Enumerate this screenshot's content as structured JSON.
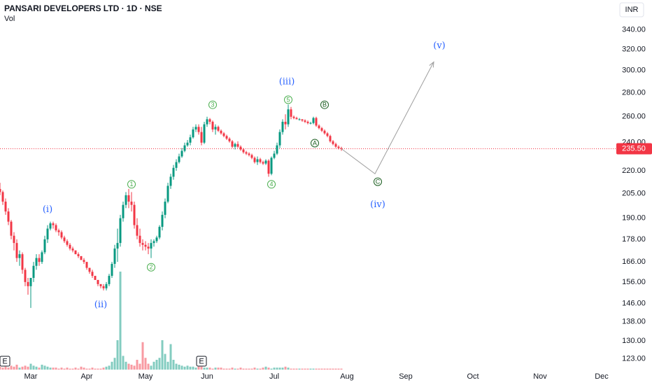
{
  "chart_data": {
    "type": "candlestick",
    "title": "PANSARI DEVELOPERS LTD · 1D · NSE",
    "volume_label": "Vol",
    "currency": "INR",
    "log_scale": true,
    "grid": false,
    "up_color": "#089981",
    "down_color": "#f23645",
    "xlim": [
      0,
      220
    ],
    "xticks": [
      {
        "value": 11,
        "label": "Mar"
      },
      {
        "value": 31,
        "label": "Apr"
      },
      {
        "value": 52,
        "label": "May"
      },
      {
        "value": 74,
        "label": "Jun"
      },
      {
        "value": 98,
        "label": "Jul"
      },
      {
        "value": 124,
        "label": "Aug"
      },
      {
        "value": 145,
        "label": "Sep"
      },
      {
        "value": 169,
        "label": "Oct"
      },
      {
        "value": 193,
        "label": "Nov"
      },
      {
        "value": 215,
        "label": "Dec"
      }
    ],
    "ylim": [
      119,
      373
    ],
    "yticks": [
      {
        "value": 340,
        "label": "340.00"
      },
      {
        "value": 320,
        "label": "320.00"
      },
      {
        "value": 300,
        "label": "300.00"
      },
      {
        "value": 280,
        "label": "280.00"
      },
      {
        "value": 260,
        "label": "260.00"
      },
      {
        "value": 240,
        "label": "240.00"
      },
      {
        "value": 220,
        "label": "220.00"
      },
      {
        "value": 205,
        "label": "205.00"
      },
      {
        "value": 190,
        "label": "190.00"
      },
      {
        "value": 178,
        "label": "178.00"
      },
      {
        "value": 166,
        "label": "166.00"
      },
      {
        "value": 156,
        "label": "156.00"
      },
      {
        "value": 146,
        "label": "146.00"
      },
      {
        "value": 138,
        "label": "138.00"
      },
      {
        "value": 130,
        "label": "130.00"
      },
      {
        "value": 123,
        "label": "123.00"
      }
    ],
    "last_price": {
      "value": 235.5,
      "label": "235.50"
    },
    "ohlc": [
      [
        208,
        212,
        204,
        206
      ],
      [
        206,
        207,
        198,
        200
      ],
      [
        200,
        202,
        192,
        194
      ],
      [
        194,
        196,
        186,
        188
      ],
      [
        188,
        189,
        178,
        180
      ],
      [
        180,
        182,
        172,
        176
      ],
      [
        176,
        178,
        166,
        168
      ],
      [
        168,
        172,
        164,
        170
      ],
      [
        170,
        171,
        160,
        162
      ],
      [
        162,
        163,
        154,
        156
      ],
      [
        156,
        158,
        150,
        154
      ],
      [
        154,
        156,
        144,
        158
      ],
      [
        158,
        166,
        156,
        164
      ],
      [
        164,
        170,
        162,
        168
      ],
      [
        168,
        170,
        164,
        166
      ],
      [
        166,
        172,
        165,
        171
      ],
      [
        171,
        180,
        170,
        178
      ],
      [
        178,
        186,
        176,
        184
      ],
      [
        184,
        188,
        183,
        187
      ],
      [
        187,
        188,
        184,
        186
      ],
      [
        186,
        187,
        182,
        183
      ],
      [
        183,
        184,
        180,
        182
      ],
      [
        182,
        183,
        178,
        179
      ],
      [
        179,
        180,
        176,
        177
      ],
      [
        177,
        178,
        174,
        175
      ],
      [
        175,
        176,
        172,
        173
      ],
      [
        173,
        174,
        171,
        172
      ],
      [
        172,
        172,
        170,
        170
      ],
      [
        170,
        171,
        168,
        169
      ],
      [
        169,
        169,
        167,
        167
      ],
      [
        167,
        168,
        165,
        166
      ],
      [
        166,
        166,
        162,
        163
      ],
      [
        163,
        163,
        160,
        161
      ],
      [
        161,
        162,
        158,
        159
      ],
      [
        159,
        159,
        157,
        157
      ],
      [
        157,
        157,
        154,
        155
      ],
      [
        155,
        155,
        153,
        154
      ],
      [
        154,
        155,
        152,
        153
      ],
      [
        153,
        156,
        152,
        155
      ],
      [
        155,
        160,
        154,
        159
      ],
      [
        159,
        166,
        158,
        165
      ],
      [
        165,
        175,
        163,
        173
      ],
      [
        173,
        184,
        166,
        176
      ],
      [
        176,
        192,
        174,
        190
      ],
      [
        190,
        200,
        188,
        198
      ],
      [
        198,
        206,
        196,
        204
      ],
      [
        204,
        208,
        196,
        200
      ],
      [
        200,
        206,
        194,
        198
      ],
      [
        198,
        200,
        184,
        186
      ],
      [
        186,
        190,
        178,
        180
      ],
      [
        180,
        184,
        174,
        176
      ],
      [
        176,
        178,
        172,
        175
      ],
      [
        175,
        177,
        172,
        174
      ],
      [
        174,
        176,
        170,
        173
      ],
      [
        173,
        178,
        168,
        176
      ],
      [
        176,
        178,
        174,
        177
      ],
      [
        177,
        180,
        176,
        179
      ],
      [
        179,
        186,
        178,
        185
      ],
      [
        185,
        194,
        183,
        192
      ],
      [
        192,
        202,
        190,
        200
      ],
      [
        200,
        212,
        199,
        210
      ],
      [
        210,
        218,
        208,
        216
      ],
      [
        216,
        224,
        214,
        222
      ],
      [
        222,
        228,
        220,
        226
      ],
      [
        226,
        232,
        225,
        230
      ],
      [
        230,
        236,
        229,
        234
      ],
      [
        234,
        240,
        233,
        238
      ],
      [
        238,
        242,
        237,
        240
      ],
      [
        240,
        246,
        238,
        244
      ],
      [
        244,
        252,
        243,
        250
      ],
      [
        250,
        254,
        248,
        252
      ],
      [
        252,
        254,
        246,
        248
      ],
      [
        248,
        252,
        238,
        240
      ],
      [
        240,
        256,
        239,
        254
      ],
      [
        254,
        260,
        252,
        258
      ],
      [
        258,
        259,
        254,
        256
      ],
      [
        256,
        257,
        248,
        250
      ],
      [
        250,
        254,
        246,
        252
      ],
      [
        252,
        253,
        248,
        249
      ],
      [
        249,
        250,
        246,
        247
      ],
      [
        247,
        248,
        244,
        245
      ],
      [
        245,
        246,
        242,
        243
      ],
      [
        243,
        244,
        240,
        241
      ],
      [
        241,
        242,
        236,
        237
      ],
      [
        237,
        240,
        235,
        239
      ],
      [
        239,
        241,
        236,
        237
      ],
      [
        237,
        238,
        234,
        235
      ],
      [
        235,
        236,
        232,
        233
      ],
      [
        233,
        234,
        231,
        232
      ],
      [
        232,
        233,
        230,
        231
      ],
      [
        231,
        232,
        228,
        229
      ],
      [
        229,
        230,
        225,
        226
      ],
      [
        226,
        230,
        224,
        228
      ],
      [
        228,
        229,
        225,
        226
      ],
      [
        226,
        227,
        224,
        225
      ],
      [
        225,
        228,
        224,
        227
      ],
      [
        227,
        228,
        216,
        218
      ],
      [
        218,
        230,
        217,
        229
      ],
      [
        229,
        234,
        228,
        232
      ],
      [
        232,
        240,
        231,
        238
      ],
      [
        238,
        250,
        236,
        248
      ],
      [
        248,
        258,
        246,
        256
      ],
      [
        256,
        262,
        250,
        254
      ],
      [
        254,
        270,
        252,
        266
      ],
      [
        266,
        268,
        258,
        260
      ],
      [
        260,
        261,
        258,
        259
      ],
      [
        259,
        260,
        258,
        258
      ],
      [
        258,
        259,
        257,
        258
      ],
      [
        258,
        258,
        256,
        257
      ],
      [
        257,
        258,
        255,
        256
      ],
      [
        256,
        257,
        254,
        255
      ],
      [
        255,
        256,
        254,
        255
      ],
      [
        255,
        260,
        254,
        259
      ],
      [
        259,
        260,
        252,
        253
      ],
      [
        253,
        254,
        250,
        251
      ],
      [
        251,
        252,
        248,
        249
      ],
      [
        249,
        250,
        246,
        247
      ],
      [
        247,
        248,
        244,
        245
      ],
      [
        245,
        246,
        240,
        241
      ],
      [
        241,
        242,
        238,
        239
      ],
      [
        239,
        240,
        236,
        237
      ],
      [
        237,
        238,
        235,
        236
      ],
      [
        236,
        237,
        234,
        235.5
      ]
    ],
    "volume_lim": [
      0,
      100
    ],
    "volume": [
      3,
      2,
      3,
      2,
      4,
      3,
      5,
      2,
      3,
      4,
      3,
      6,
      4,
      3,
      2,
      5,
      4,
      3,
      2,
      2,
      2,
      1,
      2,
      1,
      2,
      1,
      1,
      2,
      1,
      3,
      2,
      1,
      1,
      2,
      1,
      1,
      1,
      2,
      3,
      4,
      8,
      12,
      30,
      100,
      14,
      8,
      6,
      5,
      4,
      10,
      6,
      28,
      12,
      6,
      4,
      8,
      10,
      12,
      30,
      16,
      8,
      26,
      10,
      6,
      5,
      4,
      3,
      4,
      3,
      3,
      2,
      3,
      3,
      2,
      2,
      2,
      1,
      2,
      2,
      2,
      1,
      1,
      1,
      2,
      1,
      1,
      2,
      1,
      1,
      1,
      1,
      2,
      1,
      1,
      2,
      3,
      2,
      1,
      2,
      2,
      2,
      2,
      3,
      2,
      1,
      1,
      1,
      1,
      1,
      1,
      1,
      1,
      1,
      1,
      1,
      1,
      1,
      1,
      1,
      1,
      1,
      1,
      1
    ],
    "events": [
      {
        "x": 0,
        "label": "E"
      },
      {
        "x": 72,
        "label": "E"
      }
    ],
    "projection": {
      "color": "#9e9e9e",
      "x": [
        122,
        134,
        155
      ],
      "y": [
        235.5,
        218,
        308
      ]
    },
    "annotations": [
      {
        "text": "(i)",
        "x": 17,
        "y": 195,
        "color": "#2962ff",
        "circled": false
      },
      {
        "text": "(ii)",
        "x": 36,
        "y": 145.3,
        "color": "#2962ff",
        "circled": false
      },
      {
        "text": "(iii)",
        "x": 102.5,
        "y": 289.7,
        "color": "#2962ff",
        "circled": false
      },
      {
        "text": "(iv)",
        "x": 135,
        "y": 198,
        "color": "#2962ff",
        "circled": false
      },
      {
        "text": "(v)",
        "x": 157,
        "y": 323.7,
        "color": "#2962ff",
        "circled": false
      },
      {
        "text": "1",
        "x": 47,
        "y": 211,
        "color": "#4caf50",
        "circled": true
      },
      {
        "text": "2",
        "x": 54,
        "y": 163.3,
        "color": "#4caf50",
        "circled": true
      },
      {
        "text": "3",
        "x": 76,
        "y": 269.8,
        "color": "#4caf50",
        "circled": true
      },
      {
        "text": "4",
        "x": 97,
        "y": 211,
        "color": "#4caf50",
        "circled": true
      },
      {
        "text": "5",
        "x": 103,
        "y": 274,
        "color": "#4caf50",
        "circled": true
      },
      {
        "text": "A",
        "x": 112.5,
        "y": 239.6,
        "color": "#1b5e20",
        "circled": true
      },
      {
        "text": "B",
        "x": 116,
        "y": 269.8,
        "color": "#1b5e20",
        "circled": true
      },
      {
        "text": "C",
        "x": 135,
        "y": 212.7,
        "color": "#1b5e20",
        "circled": true
      }
    ]
  }
}
